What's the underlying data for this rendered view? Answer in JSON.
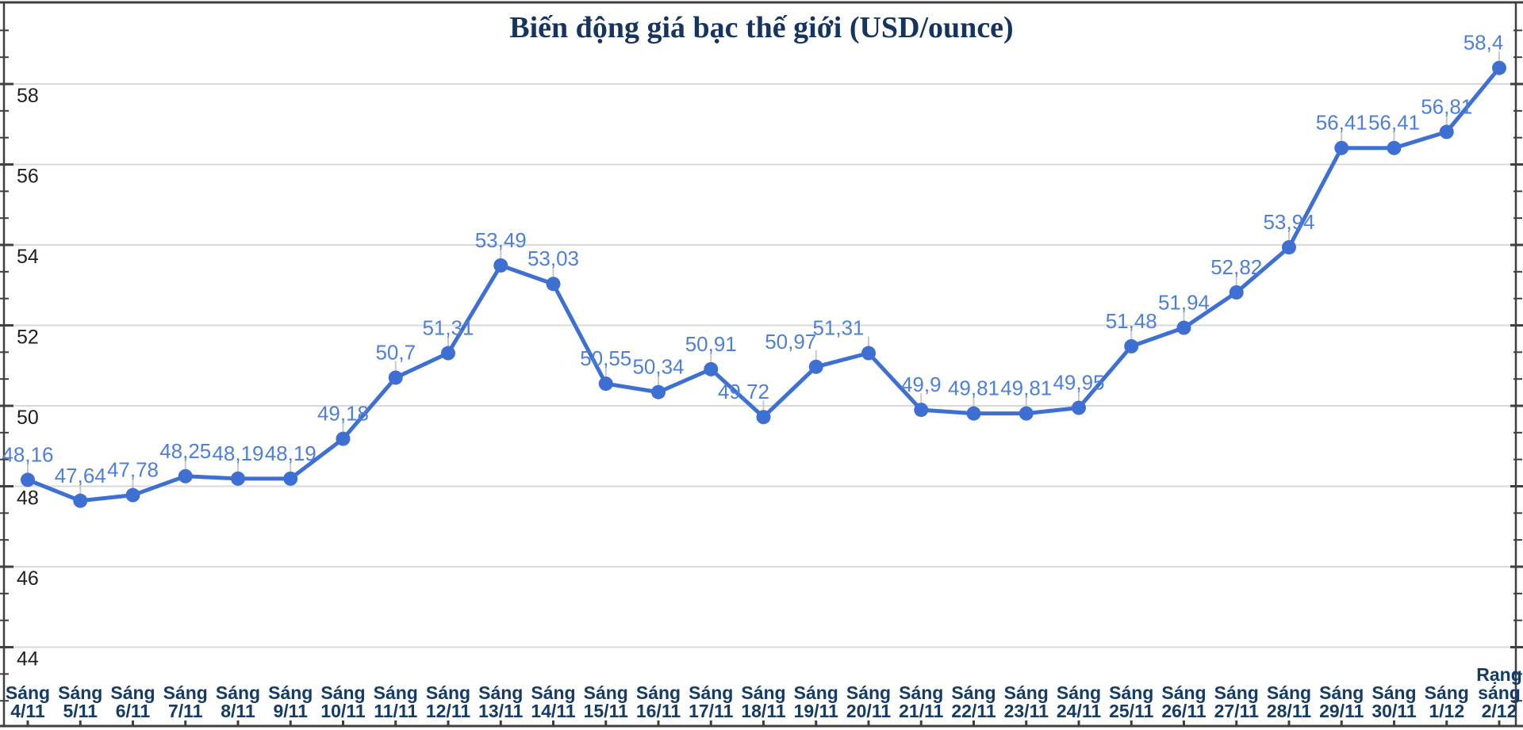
{
  "chart": {
    "title": "Biến động giá bạc thế giới (USD/ounce)"
  },
  "chart_data": {
    "type": "line",
    "title": "Biến động giá bạc thế giới (USD/ounce)",
    "categories": [
      "Sáng 4/11",
      "Sáng 5/11",
      "Sáng 6/11",
      "Sáng 7/11",
      "Sáng 8/11",
      "Sáng 9/11",
      "Sáng 10/11",
      "Sáng 11/11",
      "Sáng 12/11",
      "Sáng 13/11",
      "Sáng 14/11",
      "Sáng 15/11",
      "Sáng 16/11",
      "Sáng 17/11",
      "Sáng 18/11",
      "Sáng 19/11",
      "Sáng 20/11",
      "Sáng 21/11",
      "Sáng 22/11",
      "Sáng 23/11",
      "Sáng 24/11",
      "Sáng 25/11",
      "Sáng 26/11",
      "Sáng 27/11",
      "Sáng 28/11",
      "Sáng 29/11",
      "Sáng 30/11",
      "Sáng 1/12",
      "Rạng sáng 2/12"
    ],
    "values": [
      48.16,
      47.64,
      47.78,
      48.25,
      48.19,
      48.19,
      49.18,
      50.7,
      51.31,
      53.49,
      53.03,
      50.55,
      50.34,
      50.91,
      49.72,
      50.97,
      51.31,
      49.9,
      49.81,
      49.81,
      49.95,
      51.48,
      51.94,
      52.82,
      53.94,
      56.41,
      56.41,
      56.81,
      58.4
    ],
    "point_labels": [
      "48,16",
      "47,64",
      "47,78",
      "48,25",
      "48,19",
      "48,19",
      "49,18",
      "50,7",
      "51,31",
      "53,49",
      "53,03",
      "50,55",
      "50,34",
      "50,91",
      "49,72",
      "50,97",
      "51,31",
      "49,9",
      "49,81",
      "49,81",
      "49,95",
      "51,48",
      "51,94",
      "52,82",
      "53,94",
      "56,41",
      "56,41",
      "56,81",
      "58,4"
    ],
    "xlabel": "",
    "ylabel": "",
    "yticks": [
      44,
      46,
      48,
      50,
      52,
      54,
      56,
      58
    ],
    "ytick_labels": [
      "44",
      "46",
      "48",
      "50",
      "52",
      "54",
      "56",
      "58"
    ],
    "ylim": [
      42,
      60
    ],
    "grid": true,
    "legend": "none",
    "minor_ticks_per_major": 3,
    "label_dx": {
      "14": -25,
      "15": -32,
      "16": -38,
      "28": -20
    },
    "colors": {
      "series": "#3d70d2",
      "point_label": "#4e80d9",
      "category_label": "#143c66",
      "axis_label": "#202020",
      "gridline": "#d9d9d9",
      "border": "#3f3f3f",
      "connector": "#c9c9c9",
      "title": "#15355e",
      "background": "#ffffff"
    }
  }
}
